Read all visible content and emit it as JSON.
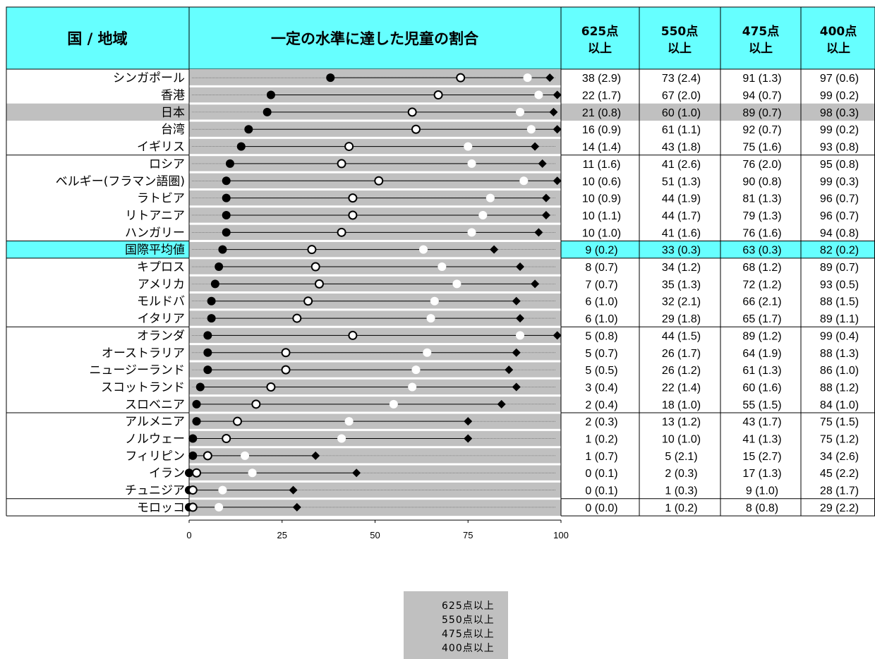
{
  "header": {
    "country": "国 / 地域",
    "chart": "一定の水準に達した児童の割合",
    "cols": [
      {
        "l1": "625点",
        "l2": "以上"
      },
      {
        "l1": "550点",
        "l2": "以上"
      },
      {
        "l1": "475点",
        "l2": "以上"
      },
      {
        "l1": "400点",
        "l2": "以上"
      }
    ]
  },
  "colors": {
    "header_bg": "#66ffff",
    "highlight_intl": "#66ffff",
    "highlight_japan": "#c0c0c0",
    "chart_bg": "#c0c0c0"
  },
  "chart_data": {
    "type": "dot-range",
    "xlim": [
      0,
      100
    ],
    "xticks": [
      "0",
      "25",
      "50",
      "75",
      "100"
    ],
    "series": [
      {
        "name": "625点以上",
        "marker": "filled-circle"
      },
      {
        "name": "550点以上",
        "marker": "open-circle"
      },
      {
        "name": "475点以上",
        "marker": "white-circle"
      },
      {
        "name": "400点以上",
        "marker": "filled-diamond"
      }
    ],
    "rows": [
      {
        "country": "シンガポール",
        "v625": 38,
        "s625": "2.9",
        "v550": 73,
        "s550": "2.4",
        "v475": 91,
        "s475": "1.3",
        "v400": 97,
        "s400": "0.6"
      },
      {
        "country": "香港",
        "v625": 22,
        "s625": "1.7",
        "v550": 67,
        "s550": "2.0",
        "v475": 94,
        "s475": "0.7",
        "v400": 99,
        "s400": "0.2"
      },
      {
        "country": "日本",
        "v625": 21,
        "s625": "0.8",
        "v550": 60,
        "s550": "1.0",
        "v475": 89,
        "s475": "0.7",
        "v400": 98,
        "s400": "0.3",
        "highlight": "japan"
      },
      {
        "country": "台湾",
        "v625": 16,
        "s625": "0.9",
        "v550": 61,
        "s550": "1.1",
        "v475": 92,
        "s475": "0.7",
        "v400": 99,
        "s400": "0.2"
      },
      {
        "country": "イギリス",
        "v625": 14,
        "s625": "1.4",
        "v550": 43,
        "s550": "1.8",
        "v475": 75,
        "s475": "1.6",
        "v400": 93,
        "s400": "0.8"
      },
      {
        "country": "ロシア",
        "v625": 11,
        "s625": "1.6",
        "v550": 41,
        "s550": "2.6",
        "v475": 76,
        "s475": "2.0",
        "v400": 95,
        "s400": "0.8"
      },
      {
        "country": "ベルギー(フラマン語圏)",
        "v625": 10,
        "s625": "0.6",
        "v550": 51,
        "s550": "1.3",
        "v475": 90,
        "s475": "0.8",
        "v400": 99,
        "s400": "0.3"
      },
      {
        "country": "ラトビア",
        "v625": 10,
        "s625": "0.9",
        "v550": 44,
        "s550": "1.9",
        "v475": 81,
        "s475": "1.3",
        "v400": 96,
        "s400": "0.7"
      },
      {
        "country": "リトアニア",
        "v625": 10,
        "s625": "1.1",
        "v550": 44,
        "s550": "1.7",
        "v475": 79,
        "s475": "1.3",
        "v400": 96,
        "s400": "0.7"
      },
      {
        "country": "ハンガリー",
        "v625": 10,
        "s625": "1.0",
        "v550": 41,
        "s550": "1.6",
        "v475": 76,
        "s475": "1.6",
        "v400": 94,
        "s400": "0.8"
      },
      {
        "country": "国際平均値",
        "v625": 9,
        "s625": "0.2",
        "v550": 33,
        "s550": "0.3",
        "v475": 63,
        "s475": "0.3",
        "v400": 82,
        "s400": "0.2",
        "highlight": "intl"
      },
      {
        "country": "キプロス",
        "v625": 8,
        "s625": "0.7",
        "v550": 34,
        "s550": "1.2",
        "v475": 68,
        "s475": "1.2",
        "v400": 89,
        "s400": "0.7"
      },
      {
        "country": "アメリカ",
        "v625": 7,
        "s625": "0.7",
        "v550": 35,
        "s550": "1.3",
        "v475": 72,
        "s475": "1.2",
        "v400": 93,
        "s400": "0.5"
      },
      {
        "country": "モルドバ",
        "v625": 6,
        "s625": "1.0",
        "v550": 32,
        "s550": "2.1",
        "v475": 66,
        "s475": "2.1",
        "v400": 88,
        "s400": "1.5"
      },
      {
        "country": "イタリア",
        "v625": 6,
        "s625": "1.0",
        "v550": 29,
        "s550": "1.8",
        "v475": 65,
        "s475": "1.7",
        "v400": 89,
        "s400": "1.1"
      },
      {
        "country": "オランダ",
        "v625": 5,
        "s625": "0.8",
        "v550": 44,
        "s550": "1.5",
        "v475": 89,
        "s475": "1.2",
        "v400": 99,
        "s400": "0.4"
      },
      {
        "country": "オーストラリア",
        "v625": 5,
        "s625": "0.7",
        "v550": 26,
        "s550": "1.7",
        "v475": 64,
        "s475": "1.9",
        "v400": 88,
        "s400": "1.3"
      },
      {
        "country": "ニュージーランド",
        "v625": 5,
        "s625": "0.5",
        "v550": 26,
        "s550": "1.2",
        "v475": 61,
        "s475": "1.3",
        "v400": 86,
        "s400": "1.0"
      },
      {
        "country": "スコットランド",
        "v625": 3,
        "s625": "0.4",
        "v550": 22,
        "s550": "1.4",
        "v475": 60,
        "s475": "1.6",
        "v400": 88,
        "s400": "1.2"
      },
      {
        "country": "スロベニア",
        "v625": 2,
        "s625": "0.4",
        "v550": 18,
        "s550": "1.0",
        "v475": 55,
        "s475": "1.5",
        "v400": 84,
        "s400": "1.0"
      },
      {
        "country": "アルメニア",
        "v625": 2,
        "s625": "0.3",
        "v550": 13,
        "s550": "1.2",
        "v475": 43,
        "s475": "1.7",
        "v400": 75,
        "s400": "1.5"
      },
      {
        "country": "ノルウェー",
        "v625": 1,
        "s625": "0.2",
        "v550": 10,
        "s550": "1.0",
        "v475": 41,
        "s475": "1.3",
        "v400": 75,
        "s400": "1.2"
      },
      {
        "country": "フィリピン",
        "v625": 1,
        "s625": "0.7",
        "v550": 5,
        "s550": "2.1",
        "v475": 15,
        "s475": "2.7",
        "v400": 34,
        "s400": "2.6"
      },
      {
        "country": "イラン",
        "v625": 0,
        "s625": "0.1",
        "v550": 2,
        "s550": "0.3",
        "v475": 17,
        "s475": "1.3",
        "v400": 45,
        "s400": "2.2"
      },
      {
        "country": "チュニジア",
        "v625": 0,
        "s625": "0.1",
        "v550": 1,
        "s550": "0.3",
        "v475": 9,
        "s475": "1.0",
        "v400": 28,
        "s400": "1.7"
      },
      {
        "country": "モロッコ",
        "v625": 0,
        "s625": "0.0",
        "v550": 1,
        "s550": "0.2",
        "v475": 8,
        "s475": "0.8",
        "v400": 29,
        "s400": "2.2"
      }
    ]
  },
  "legend": {
    "items": [
      "625点以上",
      "550点以上",
      "475点以上",
      "400点以上"
    ]
  }
}
